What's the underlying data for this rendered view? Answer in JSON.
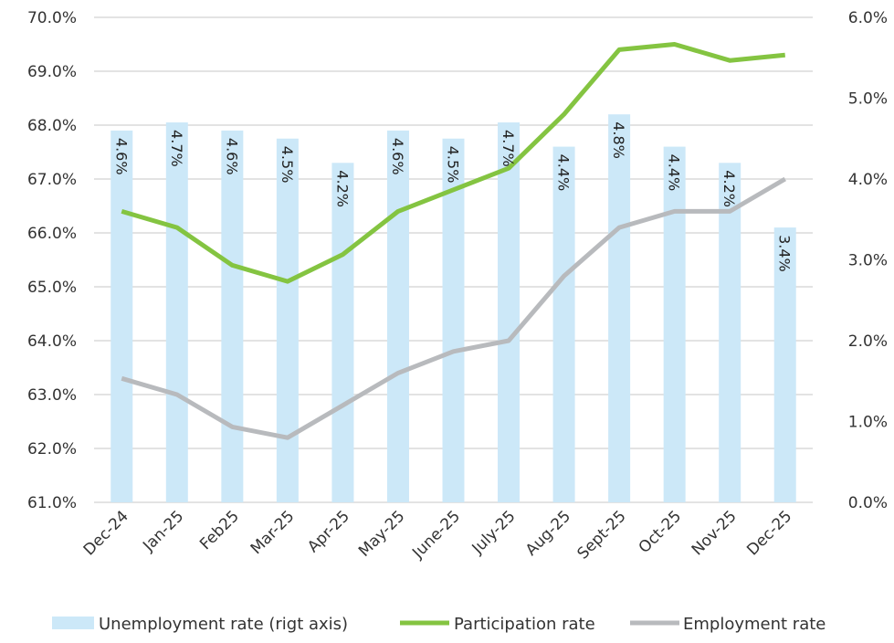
{
  "chart_data": {
    "type": "bar+line",
    "categories": [
      "Dec-24",
      "Jan-25",
      "Feb25",
      "Mar-25",
      "Apr-25",
      "May-25",
      "June-25",
      "July-25",
      "Aug-25",
      "Sept-25",
      "Oct-25",
      "Nov-25",
      "Dec-25"
    ],
    "left_axis": {
      "ylim": [
        61.0,
        70.0
      ],
      "ticks": [
        "61.0%",
        "62.0%",
        "63.0%",
        "64.0%",
        "65.0%",
        "66.0%",
        "67.0%",
        "68.0%",
        "69.0%",
        "70.0%"
      ]
    },
    "right_axis": {
      "ylim": [
        0.0,
        6.0
      ],
      "ticks": [
        "0.0%",
        "1.0%",
        "2.0%",
        "3.0%",
        "4.0%",
        "5.0%",
        "6.0%"
      ]
    },
    "series": [
      {
        "name": "Unemployment rate (rigt axis)",
        "type": "bar",
        "axis": "right",
        "color": "#cce8f8",
        "values": [
          4.6,
          4.7,
          4.6,
          4.5,
          4.2,
          4.6,
          4.5,
          4.7,
          4.4,
          4.8,
          4.4,
          4.2,
          3.4
        ],
        "labels": [
          "4.6%",
          "4.7%",
          "4.6%",
          "4.5%",
          "4.2%",
          "4.6%",
          "4.5%",
          "4.7%",
          "4.4%",
          "4.8%",
          "4.4%",
          "4.2%",
          "3.4%"
        ]
      },
      {
        "name": "Participation rate",
        "type": "line",
        "axis": "left",
        "color": "#84c441",
        "values": [
          66.4,
          66.1,
          65.4,
          65.1,
          65.6,
          66.4,
          66.8,
          67.2,
          68.2,
          69.4,
          69.5,
          69.2,
          69.3
        ]
      },
      {
        "name": "Employment rate",
        "type": "line",
        "axis": "left",
        "color": "#b8babd",
        "values": [
          63.3,
          63.0,
          62.4,
          62.2,
          62.8,
          63.4,
          63.8,
          64.0,
          65.2,
          66.1,
          66.4,
          66.4,
          67.0
        ]
      }
    ],
    "grid": true,
    "legend": "bottom"
  }
}
